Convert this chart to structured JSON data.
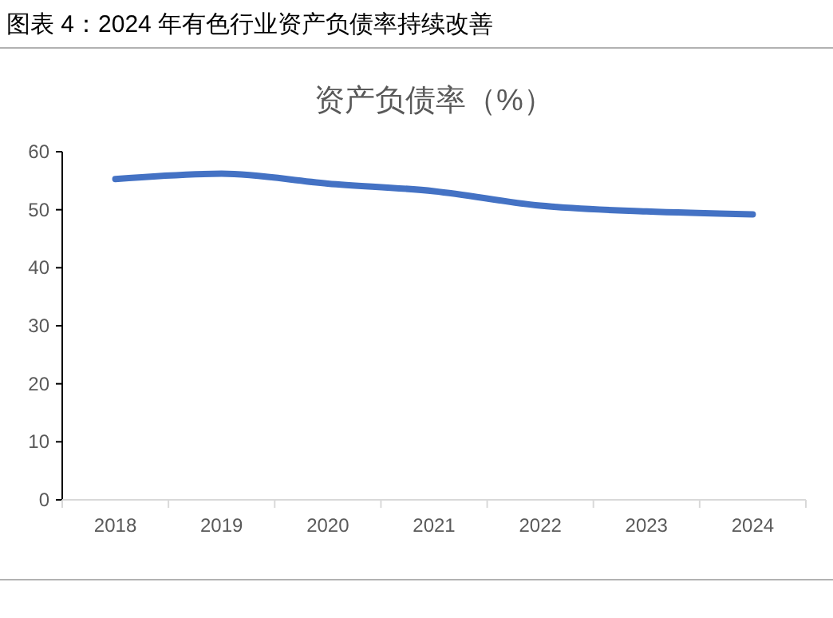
{
  "chart_data": {
    "type": "line",
    "title": "图表 4：2024 年有色行业资产负债率持续改善",
    "subtitle": "资产负债率（%）",
    "categories": [
      "2018",
      "2019",
      "2020",
      "2021",
      "2022",
      "2023",
      "2024"
    ],
    "series": [
      {
        "color": "#4472c4",
        "values": [
          55.3,
          56.2,
          54.5,
          53.2,
          50.7,
          49.7,
          49.2
        ]
      }
    ],
    "ylim": [
      0,
      60
    ],
    "yticks": [
      0,
      10,
      20,
      30,
      40,
      50,
      60
    ],
    "grid": false,
    "marker": "none",
    "line_style": "solid"
  }
}
